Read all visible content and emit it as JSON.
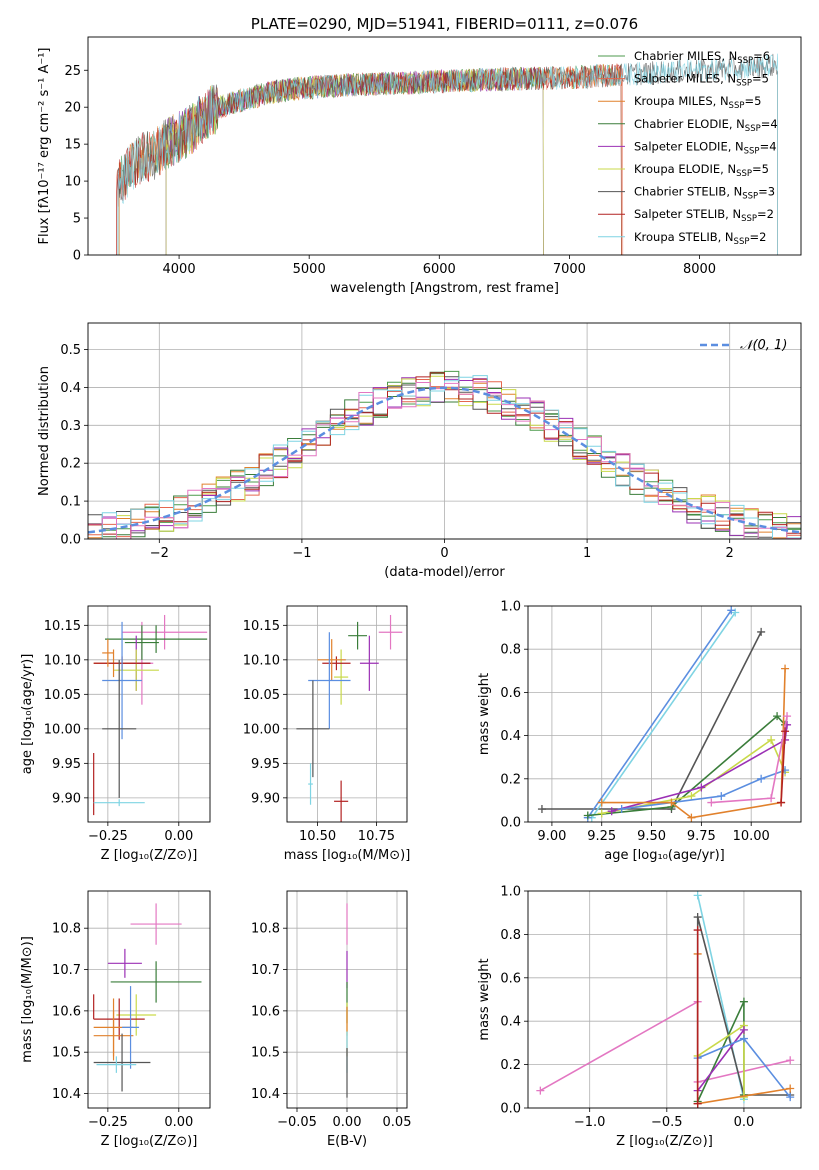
{
  "palette": [
    "#4c72b0",
    "#e1812c",
    "#3a923a",
    "#c03d3e",
    "#9372b2",
    "#845b53",
    "#d684bd",
    "#7f7f7f",
    "#a9aa35",
    "#2eb1c7"
  ],
  "chart_data": [
    {
      "id": "spectrum",
      "type": "line",
      "title": "PLATE=0290, MJD=51941, FIBERID=0111, z=0.076",
      "xlabel": "wavelength [Angstrom, rest frame]",
      "ylabel": "Flux [fλ10⁻¹⁷ erg cm⁻² s⁻¹ A⁻¹]",
      "xlim": [
        3300,
        8780
      ],
      "ylim": [
        0,
        29.5
      ],
      "xticks": [
        4000,
        5000,
        6000,
        7000,
        8000
      ],
      "yticks": [
        0,
        5,
        10,
        15,
        20,
        25
      ],
      "grid": false,
      "legend_position": "top-right",
      "spectrum_anchor_points": [
        [
          3520,
          9
        ],
        [
          3600,
          11
        ],
        [
          3700,
          13
        ],
        [
          3800,
          13.5
        ],
        [
          3900,
          15
        ],
        [
          4000,
          16
        ],
        [
          4100,
          17
        ],
        [
          4200,
          19
        ],
        [
          4300,
          20
        ],
        [
          4400,
          20.5
        ],
        [
          4500,
          21
        ],
        [
          4700,
          22
        ],
        [
          4900,
          22.5
        ],
        [
          5100,
          22.8
        ],
        [
          5300,
          23
        ],
        [
          5600,
          23.2
        ],
        [
          6000,
          23.5
        ],
        [
          6500,
          23.8
        ],
        [
          7000,
          24
        ],
        [
          7500,
          24.5
        ],
        [
          8000,
          25
        ],
        [
          8500,
          25.5
        ],
        [
          8600,
          25.8
        ]
      ],
      "series": [
        {
          "name": "Chabrier MILES, N_SSP=6",
          "name_main": "Chabrier MILES, N",
          "name_sub": "SSP",
          "name_tail": "=6",
          "color": "#4c9a4c",
          "xmin": 3540,
          "xmax": 7400
        },
        {
          "name": "Salpeter MILES, N_SSP=5",
          "name_main": "Salpeter MILES, N",
          "name_sub": "SSP",
          "name_tail": "=5",
          "color": "#e5674f",
          "xmin": 3520,
          "xmax": 7410
        },
        {
          "name": "Kroupa MILES, N_SSP=5",
          "name_main": "Kroupa MILES, N",
          "name_sub": "SSP",
          "name_tail": "=5",
          "color": "#e1812c",
          "xmin": 3540,
          "xmax": 7400
        },
        {
          "name": "Chabrier ELODIE, N_SSP=4",
          "name_main": "Chabrier ELODIE, N",
          "name_sub": "SSP",
          "name_tail": "=4",
          "color": "#3a7d3a",
          "xmin": 3900,
          "xmax": 6800
        },
        {
          "name": "Salpeter ELODIE, N_SSP=4",
          "name_main": "Salpeter ELODIE, N",
          "name_sub": "SSP",
          "name_tail": "=4",
          "color": "#9b30b5",
          "xmin": 3900,
          "xmax": 6800
        },
        {
          "name": "Kroupa ELODIE, N_SSP=5",
          "name_main": "Kroupa ELODIE, N",
          "name_sub": "SSP",
          "name_tail": "=5",
          "color": "#c9d94a",
          "xmin": 3900,
          "xmax": 6800
        },
        {
          "name": "Chabrier STELIB, N_SSP=3",
          "name_main": "Chabrier STELIB, N",
          "name_sub": "SSP",
          "name_tail": "=3",
          "color": "#555555",
          "xmin": 3530,
          "xmax": 8600
        },
        {
          "name": "Salpeter STELIB, N_SSP=2",
          "name_main": "Salpeter STELIB, N",
          "name_sub": "SSP",
          "name_tail": "=2",
          "color": "#b22222",
          "xmin": 3520,
          "xmax": 7400
        },
        {
          "name": "Kroupa STELIB, N_SSP=2",
          "name_main": "Kroupa STELIB, N",
          "name_sub": "SSP",
          "name_tail": "=2",
          "color": "#7fd4e3",
          "xmin": 3530,
          "xmax": 8600
        }
      ]
    },
    {
      "id": "residuals",
      "type": "histogram",
      "xlabel": "(data-model)/error",
      "ylabel": "Normed distribution",
      "xlim": [
        -2.5,
        2.5
      ],
      "ylim": [
        0,
        0.57
      ],
      "xticks": [
        -2,
        -1,
        0,
        1,
        2
      ],
      "yticks": [
        0.0,
        0.1,
        0.2,
        0.3,
        0.4,
        0.5
      ],
      "grid": true,
      "legend_position": "top-right",
      "reference_curve": {
        "name": "𝒩(0, 1)",
        "color": "#5b8ee0",
        "style": "dashed",
        "mean": 0,
        "sigma": 1
      },
      "bin_width": 0.1,
      "series_colors": [
        "#4c9a4c",
        "#e5674f",
        "#e1812c",
        "#3a7d3a",
        "#9b30b5",
        "#c9d94a",
        "#555555",
        "#b22222",
        "#7fd4e3",
        "#e377c2",
        "#5b8ee0"
      ]
    },
    {
      "id": "age-vs-z",
      "type": "scatter",
      "xlabel": "Z [log₁₀(Z/Z⊙)]",
      "ylabel": "age  [log₁₀(age/yr)]",
      "xlim": [
        -0.32,
        0.11
      ],
      "ylim": [
        9.865,
        10.178
      ],
      "xticks": [
        -0.25,
        0.0
      ],
      "xticklabels": [
        "−0.25",
        "0.00"
      ],
      "yticks": [
        9.9,
        9.95,
        10.0,
        10.05,
        10.1,
        10.15
      ],
      "grid": true,
      "points": [
        {
          "x": -0.13,
          "xerr": 0.04,
          "y": 10.095,
          "yerr": 0.06,
          "color": "#e377c2"
        },
        {
          "x": -0.05,
          "xerr": 0.15,
          "y": 10.14,
          "yerr": 0.025,
          "color": "#e377c2"
        },
        {
          "x": -0.08,
          "xerr": 0.18,
          "y": 10.13,
          "yerr": 0.02,
          "color": "#3a7d3a"
        },
        {
          "x": -0.13,
          "xerr": 0.06,
          "y": 10.125,
          "yerr": 0.025,
          "color": "#3a7d3a"
        },
        {
          "x": -0.15,
          "xerr": 0.05,
          "y": 10.095,
          "yerr": 0.04,
          "color": "#9b30b5"
        },
        {
          "x": -0.15,
          "xerr": 0.08,
          "y": 10.085,
          "yerr": 0.03,
          "color": "#c9d94a"
        },
        {
          "x": -0.23,
          "xerr": 0.07,
          "y": 10.095,
          "yerr": 0.02,
          "color": "#e1812c"
        },
        {
          "x": -0.2,
          "xerr": 0.1,
          "y": 10.095,
          "yerr": 0.01,
          "color": "#b22222"
        },
        {
          "x": -0.2,
          "xerr": 0.07,
          "y": 10.07,
          "yerr": 0.085,
          "color": "#5b8ee0"
        },
        {
          "x": -0.25,
          "xerr": 0.02,
          "y": 10.11,
          "yerr": 0.02,
          "color": "#e1812c"
        },
        {
          "x": -0.21,
          "xerr": 0.06,
          "y": 10.0,
          "yerr": 0.1,
          "color": "#555555"
        },
        {
          "x": -0.3,
          "xerr": 0.0,
          "y": 9.92,
          "yerr": 0.045,
          "color": "#b22222"
        },
        {
          "x": -0.21,
          "xerr": 0.09,
          "y": 9.893,
          "yerr": 0.005,
          "color": "#7fd4e3"
        }
      ]
    },
    {
      "id": "age-vs-mass",
      "type": "scatter",
      "xlabel": "mass [log₁₀(M/M⊙)]",
      "ylabel": "",
      "xlim": [
        10.37,
        10.88
      ],
      "ylim": [
        9.865,
        10.178
      ],
      "xticks": [
        10.5,
        10.75
      ],
      "xticklabels": [
        "10.50",
        "10.75"
      ],
      "yticks": [
        9.9,
        9.95,
        10.0,
        10.05,
        10.1,
        10.15
      ],
      "grid": true,
      "points": [
        {
          "x": 10.81,
          "xerr": 0.05,
          "y": 10.14,
          "yerr": 0.025,
          "color": "#e377c2"
        },
        {
          "x": 10.67,
          "xerr": 0.04,
          "y": 10.135,
          "yerr": 0.02,
          "color": "#3a7d3a"
        },
        {
          "x": 10.72,
          "xerr": 0.04,
          "y": 10.095,
          "yerr": 0.04,
          "color": "#9b30b5"
        },
        {
          "x": 10.6,
          "xerr": 0.03,
          "y": 10.075,
          "yerr": 0.04,
          "color": "#c9d94a"
        },
        {
          "x": 10.58,
          "xerr": 0.06,
          "y": 10.095,
          "yerr": 0.01,
          "color": "#b22222"
        },
        {
          "x": 10.56,
          "xerr": 0.06,
          "y": 10.1,
          "yerr": 0.03,
          "color": "#e1812c"
        },
        {
          "x": 10.55,
          "xerr": 0.09,
          "y": 10.07,
          "yerr": 0.07,
          "color": "#5b8ee0"
        },
        {
          "x": 10.48,
          "xerr": 0.07,
          "y": 10.0,
          "yerr": 0.07,
          "color": "#555555"
        },
        {
          "x": 10.6,
          "xerr": 0.03,
          "y": 9.895,
          "yerr": 0.03,
          "color": "#b22222"
        },
        {
          "x": 10.47,
          "xerr": 0.01,
          "y": 9.92,
          "yerr": 0.03,
          "color": "#7fd4e3"
        }
      ]
    },
    {
      "id": "weight-vs-age",
      "type": "line",
      "xlabel": "age  [log₁₀(age/yr)]",
      "ylabel": "mass weight",
      "xlim": [
        8.88,
        10.25
      ],
      "ylim": [
        0,
        1
      ],
      "xticks": [
        9.0,
        9.25,
        9.5,
        9.75,
        10.0
      ],
      "xticklabels": [
        "9.00",
        "9.25",
        "9.50",
        "9.75",
        "10.00"
      ],
      "yticks": [
        0.0,
        0.2,
        0.4,
        0.6,
        0.8,
        1.0
      ],
      "grid": true,
      "series": [
        {
          "color": "#555555",
          "x": [
            8.95,
            9.6,
            10.05
          ],
          "y": [
            0.06,
            0.06,
            0.88
          ]
        },
        {
          "color": "#7fd4e3",
          "x": [
            9.2,
            9.92
          ],
          "y": [
            0.02,
            0.97
          ]
        },
        {
          "color": "#5b8ee0",
          "x": [
            9.18,
            9.9
          ],
          "y": [
            0.02,
            0.98
          ]
        },
        {
          "color": "#3a7d3a",
          "x": [
            9.18,
            9.6,
            10.13,
            10.17
          ],
          "y": [
            0.03,
            0.07,
            0.49,
            0.45
          ]
        },
        {
          "color": "#c9d94a",
          "x": [
            9.25,
            9.7,
            10.1,
            10.17
          ],
          "y": [
            0.04,
            0.12,
            0.38,
            0.23
          ]
        },
        {
          "color": "#9b30b5",
          "x": [
            9.3,
            9.75,
            10.17,
            10.18
          ],
          "y": [
            0.05,
            0.16,
            0.38,
            0.45
          ]
        },
        {
          "color": "#5b8ee0",
          "x": [
            9.35,
            9.85,
            10.05,
            10.17
          ],
          "y": [
            0.06,
            0.12,
            0.2,
            0.24
          ]
        },
        {
          "color": "#e1812c",
          "x": [
            9.25,
            9.6,
            9.7,
            10.15,
            10.17
          ],
          "y": [
            0.09,
            0.09,
            0.02,
            0.09,
            0.71
          ]
        },
        {
          "color": "#e377c2",
          "x": [
            9.8,
            10.1,
            10.18
          ],
          "y": [
            0.09,
            0.11,
            0.49
          ]
        },
        {
          "color": "#b22222",
          "x": [
            10.15,
            10.17
          ],
          "y": [
            0.09,
            0.42
          ]
        }
      ]
    },
    {
      "id": "mass-vs-z",
      "type": "scatter",
      "xlabel": "Z [log₁₀(Z/Z⊙)]",
      "ylabel": "mass [log₁₀(M/M⊙)]",
      "xlim": [
        -0.32,
        0.11
      ],
      "ylim": [
        10.365,
        10.89
      ],
      "xticks": [
        -0.25,
        0.0
      ],
      "xticklabels": [
        "−0.25",
        "0.00"
      ],
      "yticks": [
        10.4,
        10.5,
        10.6,
        10.7,
        10.8
      ],
      "grid": true,
      "points": [
        {
          "x": -0.08,
          "xerr": 0.09,
          "y": 10.81,
          "yerr": 0.05,
          "color": "#e377c2"
        },
        {
          "x": -0.19,
          "xerr": 0.06,
          "y": 10.715,
          "yerr": 0.035,
          "color": "#9b30b5"
        },
        {
          "x": -0.08,
          "xerr": 0.16,
          "y": 10.67,
          "yerr": 0.05,
          "color": "#3a7d3a"
        },
        {
          "x": -0.15,
          "xerr": 0.07,
          "y": 10.59,
          "yerr": 0.05,
          "color": "#c9d94a"
        },
        {
          "x": -0.21,
          "xerr": 0.09,
          "y": 10.58,
          "yerr": 0.05,
          "color": "#b22222"
        },
        {
          "x": -0.23,
          "xerr": 0.07,
          "y": 10.56,
          "yerr": 0.07,
          "color": "#e1812c"
        },
        {
          "x": -0.23,
          "xerr": 0.07,
          "y": 10.54,
          "yerr": 0.06,
          "color": "#e1812c"
        },
        {
          "x": -0.17,
          "xerr": 0.03,
          "y": 10.56,
          "yerr": 0.1,
          "color": "#5b8ee0"
        },
        {
          "x": -0.2,
          "xerr": 0.1,
          "y": 10.475,
          "yerr": 0.07,
          "color": "#555555"
        },
        {
          "x": -0.22,
          "xerr": 0.07,
          "y": 10.47,
          "yerr": 0.02,
          "color": "#7fd4e3"
        },
        {
          "x": -0.3,
          "xerr": 0.0,
          "y": 10.61,
          "yerr": 0.03,
          "color": "#b22222"
        }
      ]
    },
    {
      "id": "mass-vs-ebv",
      "type": "scatter",
      "xlabel": "E(B-V)",
      "ylabel": "",
      "xlim": [
        -0.06,
        0.06
      ],
      "ylim": [
        10.365,
        10.89
      ],
      "xticks": [
        -0.05,
        0.0,
        0.05
      ],
      "xticklabels": [
        "−0.05",
        "0.00",
        "0.05"
      ],
      "yticks": [
        10.4,
        10.5,
        10.6,
        10.7,
        10.8
      ],
      "grid": true,
      "points": [
        {
          "x": 0.0,
          "xerr": 0.0,
          "y": 10.81,
          "yerr": 0.05,
          "color": "#e377c2"
        },
        {
          "x": 0.0,
          "xerr": 0.0,
          "y": 10.7,
          "yerr": 0.045,
          "color": "#9b30b5"
        },
        {
          "x": 0.0,
          "xerr": 0.0,
          "y": 10.62,
          "yerr": 0.05,
          "color": "#3a7d3a"
        },
        {
          "x": 0.0,
          "xerr": 0.0,
          "y": 10.58,
          "yerr": 0.04,
          "color": "#c9d94a"
        },
        {
          "x": 0.0,
          "xerr": 0.0,
          "y": 10.55,
          "yerr": 0.06,
          "color": "#e1812c"
        },
        {
          "x": 0.0,
          "xerr": 0.0,
          "y": 10.5,
          "yerr": 0.05,
          "color": "#7fd4e3"
        },
        {
          "x": 0.0,
          "xerr": 0.0,
          "y": 10.45,
          "yerr": 0.06,
          "color": "#555555"
        }
      ]
    },
    {
      "id": "weight-vs-z",
      "type": "line",
      "xlabel": "Z [log₁₀(Z/Z⊙)]",
      "ylabel": "mass weight",
      "xlim": [
        -1.4,
        0.37
      ],
      "ylim": [
        0,
        1
      ],
      "xticks": [
        -1.0,
        -0.5,
        0.0
      ],
      "xticklabels": [
        "−1.0",
        "−0.5",
        "0.0"
      ],
      "yticks": [
        0.0,
        0.2,
        0.4,
        0.6,
        0.8,
        1.0
      ],
      "grid": true,
      "series": [
        {
          "color": "#e377c2",
          "x": [
            -1.32,
            -0.3,
            -0.3,
            0.3
          ],
          "y": [
            0.08,
            0.49,
            0.12,
            0.22
          ]
        },
        {
          "color": "#7fd4e3",
          "x": [
            -0.3,
            0.0
          ],
          "y": [
            0.98,
            0.04
          ]
        },
        {
          "color": "#555555",
          "x": [
            -0.3,
            -0.3,
            0.0,
            0.3
          ],
          "y": [
            0.02,
            0.88,
            0.06,
            0.06
          ]
        },
        {
          "color": "#3a7d3a",
          "x": [
            -0.3,
            0.0,
            0.0
          ],
          "y": [
            0.03,
            0.49,
            0.06
          ]
        },
        {
          "color": "#c9d94a",
          "x": [
            -0.3,
            0.0,
            0.0
          ],
          "y": [
            0.24,
            0.38,
            0.05
          ]
        },
        {
          "color": "#9b30b5",
          "x": [
            -0.3,
            0.0
          ],
          "y": [
            0.08,
            0.36
          ]
        },
        {
          "color": "#5b8ee0",
          "x": [
            -0.3,
            0.0,
            0.3
          ],
          "y": [
            0.23,
            0.32,
            0.05
          ]
        },
        {
          "color": "#e1812c",
          "x": [
            -0.3,
            -0.3,
            0.3
          ],
          "y": [
            0.71,
            0.02,
            0.09
          ]
        },
        {
          "color": "#b22222",
          "x": [
            -0.3,
            -0.3
          ],
          "y": [
            0.02,
            0.82
          ]
        }
      ]
    }
  ]
}
